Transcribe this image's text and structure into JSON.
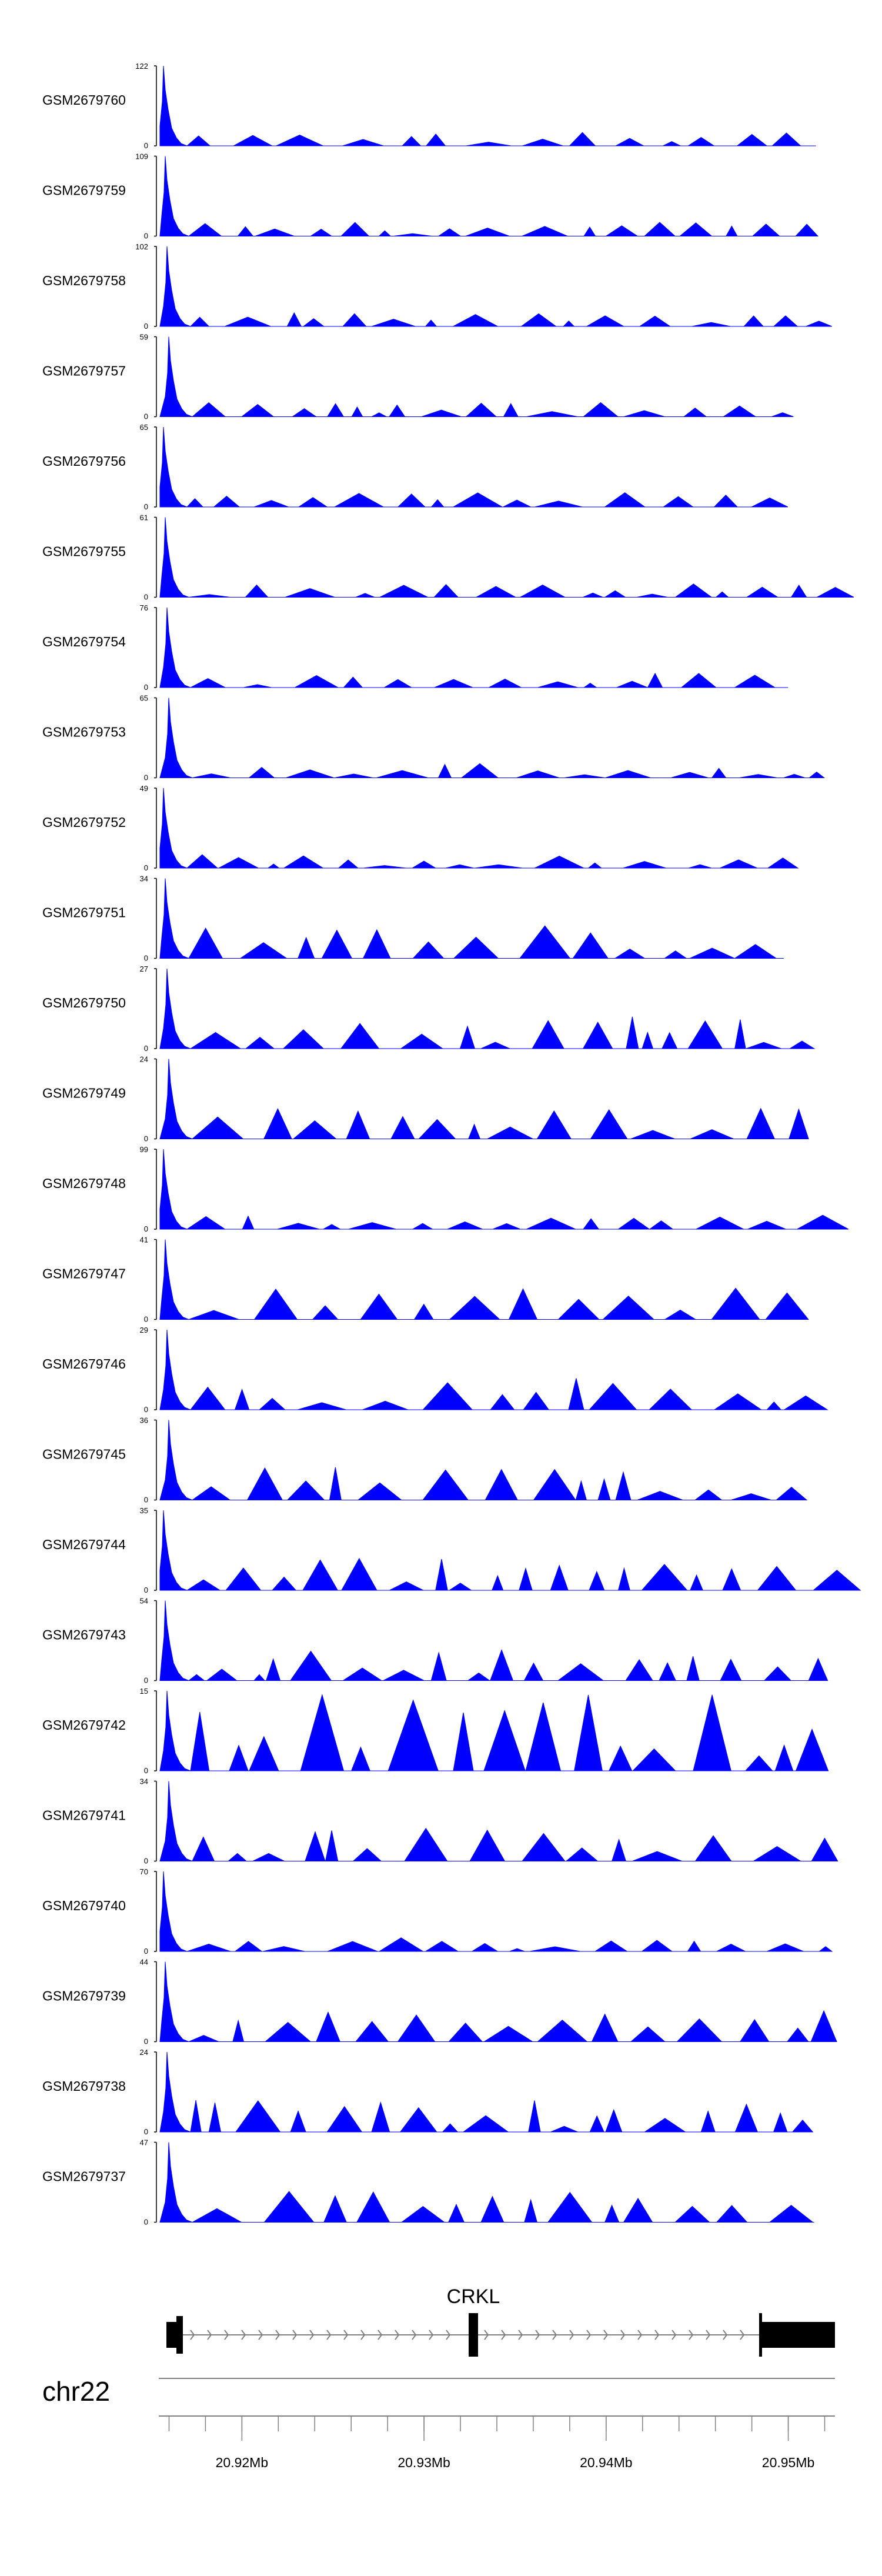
{
  "colors": {
    "signal": "#0000ff",
    "axis": "#000000",
    "gene": "#000000",
    "intron": "#808080",
    "ruler": "#808080"
  },
  "chart_data": {
    "type": "area",
    "tracks": [
      {
        "name": "GSM2679760",
        "max": "122",
        "min": "0"
      },
      {
        "name": "GSM2679759",
        "max": "109",
        "min": "0"
      },
      {
        "name": "GSM2679758",
        "max": "102",
        "min": "0"
      },
      {
        "name": "GSM2679757",
        "max": "59",
        "min": "0"
      },
      {
        "name": "GSM2679756",
        "max": "65",
        "min": "0"
      },
      {
        "name": "GSM2679755",
        "max": "61",
        "min": "0"
      },
      {
        "name": "GSM2679754",
        "max": "76",
        "min": "0"
      },
      {
        "name": "GSM2679753",
        "max": "65",
        "min": "0"
      },
      {
        "name": "GSM2679752",
        "max": "49",
        "min": "0"
      },
      {
        "name": "GSM2679751",
        "max": "34",
        "min": "0"
      },
      {
        "name": "GSM2679750",
        "max": "27",
        "min": "0"
      },
      {
        "name": "GSM2679749",
        "max": "24",
        "min": "0"
      },
      {
        "name": "GSM2679748",
        "max": "99",
        "min": "0"
      },
      {
        "name": "GSM2679747",
        "max": "41",
        "min": "0"
      },
      {
        "name": "GSM2679746",
        "max": "29",
        "min": "0"
      },
      {
        "name": "GSM2679745",
        "max": "36",
        "min": "0"
      },
      {
        "name": "GSM2679744",
        "max": "35",
        "min": "0"
      },
      {
        "name": "GSM2679743",
        "max": "54",
        "min": "0"
      },
      {
        "name": "GSM2679742",
        "max": "15",
        "min": "0"
      },
      {
        "name": "GSM2679741",
        "max": "34",
        "min": "0"
      },
      {
        "name": "GSM2679740",
        "max": "70",
        "min": "0"
      },
      {
        "name": "GSM2679739",
        "max": "44",
        "min": "0"
      },
      {
        "name": "GSM2679738",
        "max": "24",
        "min": "0"
      },
      {
        "name": "GSM2679737",
        "max": "47",
        "min": "0"
      }
    ],
    "gene": {
      "label": "CRKL",
      "strand": "+"
    },
    "chromosome": "chr22",
    "x_axis": {
      "unit": "Mb",
      "range": [
        20.9155,
        20.9525
      ],
      "ticks": [
        20.92,
        20.93,
        20.94,
        20.95
      ],
      "tick_labels": [
        "20.92Mb",
        "20.93Mb",
        "20.94Mb",
        "20.95Mb"
      ]
    }
  }
}
